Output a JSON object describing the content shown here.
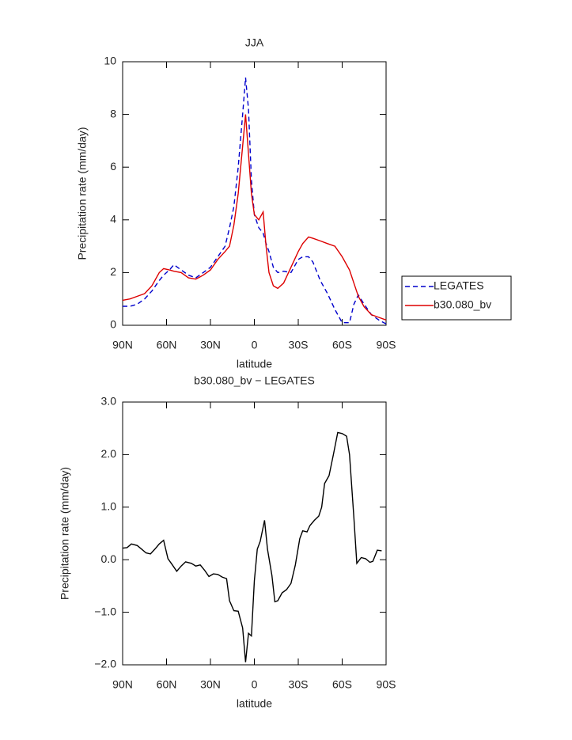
{
  "chart_data": [
    {
      "type": "line",
      "title": "JJA",
      "xlabel": "latitude",
      "ylabel": "Precipitation rate (mm/day)",
      "x": [
        90,
        85,
        80,
        75,
        70,
        65,
        62,
        58,
        55,
        50,
        45,
        40,
        35,
        30,
        25,
        20,
        17,
        14,
        11,
        8,
        6,
        4,
        2,
        0,
        -3,
        -6,
        -8,
        -10,
        -13,
        -16,
        -20,
        -25,
        -30,
        -33,
        -37,
        -40,
        -45,
        -50,
        -55,
        -60,
        -65,
        -68,
        -71,
        -75,
        -80,
        -85,
        -90
      ],
      "series": [
        {
          "name": "LEGATES",
          "color": "#0000cc",
          "line_style": "dashed",
          "values": [
            0.72,
            0.72,
            0.8,
            1.0,
            1.3,
            1.7,
            1.9,
            2.1,
            2.3,
            2.1,
            1.9,
            1.8,
            2.0,
            2.2,
            2.6,
            3.0,
            3.7,
            4.5,
            6.0,
            8.0,
            9.4,
            8.2,
            5.5,
            4.2,
            3.7,
            3.5,
            3.1,
            2.8,
            2.2,
            2.0,
            2.05,
            2.0,
            2.5,
            2.6,
            2.6,
            2.4,
            1.7,
            1.2,
            0.6,
            0.1,
            0.1,
            0.8,
            1.15,
            0.8,
            0.4,
            0.2,
            0.05
          ]
        },
        {
          "name": "b30.080_bv",
          "color": "#dd0000",
          "line_style": "solid",
          "values": [
            0.95,
            1.0,
            1.1,
            1.2,
            1.5,
            2.0,
            2.15,
            2.1,
            2.05,
            2.0,
            1.8,
            1.75,
            1.9,
            2.1,
            2.5,
            2.8,
            3.0,
            3.8,
            5.0,
            6.8,
            8.0,
            6.5,
            5.0,
            4.2,
            4.0,
            4.3,
            3.0,
            2.0,
            1.5,
            1.4,
            1.6,
            2.2,
            2.8,
            3.1,
            3.35,
            3.3,
            3.2,
            3.1,
            3.0,
            2.6,
            2.1,
            1.6,
            1.1,
            0.7,
            0.4,
            0.3,
            0.2
          ]
        }
      ],
      "xlim": [
        90,
        -90
      ],
      "xticks": [
        {
          "value": 90,
          "label": "90N"
        },
        {
          "value": 60,
          "label": "60N"
        },
        {
          "value": 30,
          "label": "30N"
        },
        0,
        {
          "value": -30,
          "label": "30S"
        },
        {
          "value": -60,
          "label": "60S"
        },
        {
          "value": -90,
          "label": "90S"
        }
      ],
      "ylim": [
        0,
        10
      ],
      "yticks": [
        0,
        2,
        4,
        6,
        8,
        10
      ],
      "legend": "right"
    },
    {
      "type": "line",
      "title": "b30.080_bv − LEGATES",
      "xlabel": "latitude",
      "ylabel": "Precipitation rate (mm/day)",
      "x": [
        90,
        87,
        84,
        80,
        77,
        74,
        71,
        68,
        65,
        62,
        59,
        56,
        53,
        50,
        47,
        43,
        40,
        37,
        34,
        31,
        28,
        25,
        22,
        19,
        17,
        14,
        11,
        8,
        6,
        4,
        2,
        0,
        -2,
        -4,
        -7,
        -9,
        -12,
        -14,
        -16,
        -19,
        -22,
        -25,
        -28,
        -31,
        -33,
        -36,
        -38,
        -41,
        -44,
        -46,
        -48,
        -51,
        -54,
        -57,
        -60,
        -63,
        -65,
        -68,
        -70,
        -73,
        -76,
        -79,
        -81,
        -84,
        -87
      ],
      "series": [
        {
          "color": "#000000",
          "line_style": "solid",
          "values": [
            0.22,
            0.23,
            0.3,
            0.27,
            0.2,
            0.13,
            0.11,
            0.2,
            0.3,
            0.37,
            0.02,
            -0.1,
            -0.22,
            -0.12,
            -0.04,
            -0.07,
            -0.12,
            -0.1,
            -0.2,
            -0.32,
            -0.27,
            -0.28,
            -0.33,
            -0.36,
            -0.78,
            -0.97,
            -0.98,
            -1.3,
            -1.95,
            -1.4,
            -1.45,
            -0.4,
            0.2,
            0.35,
            0.75,
            0.2,
            -0.3,
            -0.8,
            -0.78,
            -0.63,
            -0.57,
            -0.45,
            -0.1,
            0.4,
            0.55,
            0.53,
            0.65,
            0.75,
            0.83,
            1.0,
            1.45,
            1.6,
            2.0,
            2.42,
            2.4,
            2.35,
            2.0,
            0.8,
            -0.07,
            0.04,
            0.02,
            -0.05,
            -0.03,
            0.18,
            0.17
          ]
        }
      ],
      "xlim": [
        90,
        -90
      ],
      "xticks": [
        {
          "value": 90,
          "label": "90N"
        },
        {
          "value": 60,
          "label": "60N"
        },
        {
          "value": 30,
          "label": "30N"
        },
        0,
        {
          "value": -30,
          "label": "30S"
        },
        {
          "value": -60,
          "label": "60S"
        },
        {
          "value": -90,
          "label": "90S"
        }
      ],
      "ylim": [
        -2,
        3
      ],
      "yticks": [
        {
          "value": -2,
          "label": "−2.0"
        },
        {
          "value": -1,
          "label": "−1.0"
        },
        {
          "value": 0,
          "label": "0.0"
        },
        {
          "value": 1,
          "label": "1.0"
        },
        {
          "value": 2,
          "label": "2.0"
        },
        {
          "value": 3,
          "label": "3.0"
        }
      ]
    }
  ]
}
